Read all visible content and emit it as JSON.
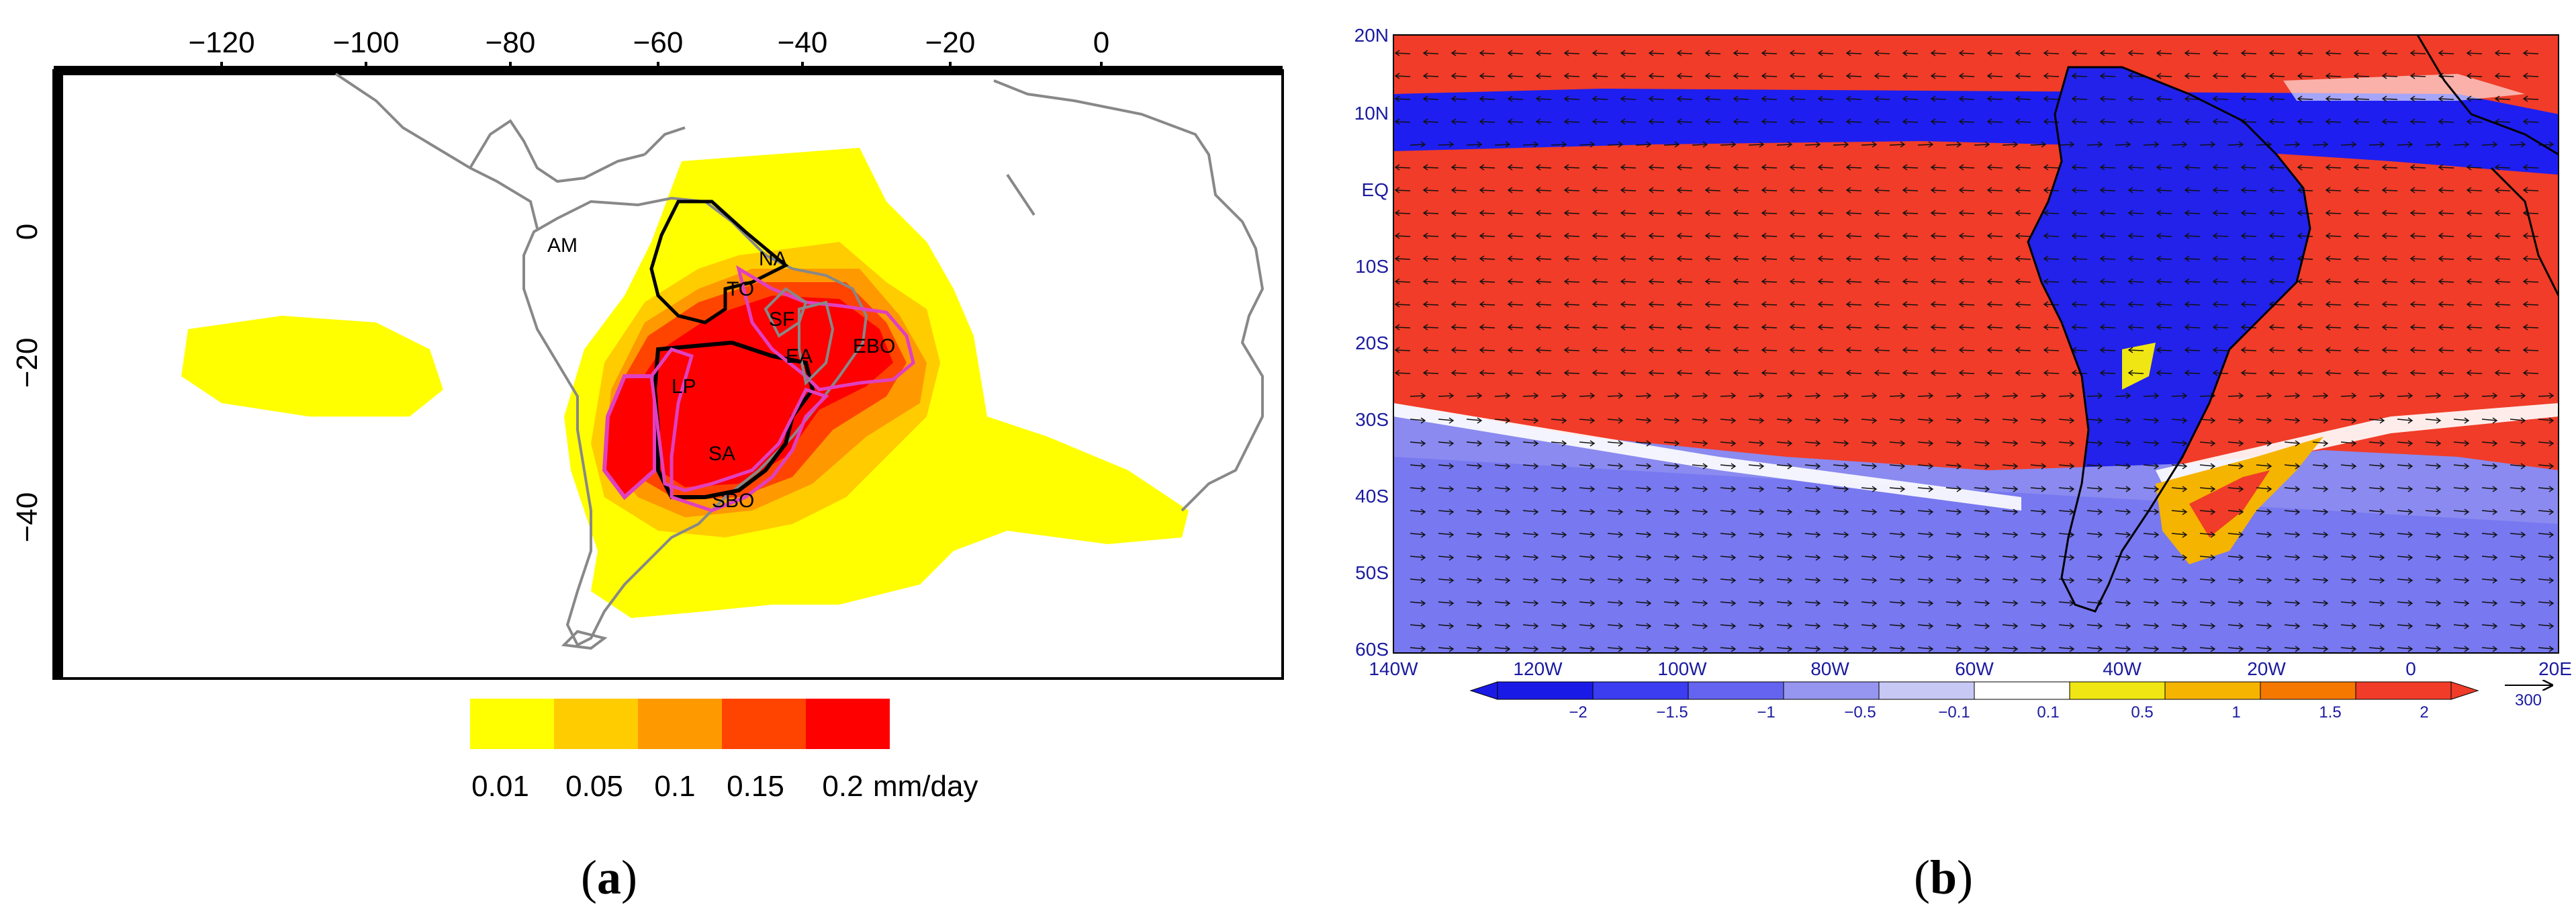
{
  "panel_a": {
    "label": "a",
    "x_ticks": [
      "−120",
      "−100",
      "−80",
      "−60",
      "−40",
      "−20",
      "0"
    ],
    "y_ticks": [
      "0",
      "−20",
      "−40"
    ],
    "regions": [
      "AM",
      "NA",
      "TO",
      "SF",
      "EA",
      "EBO",
      "LP",
      "SA",
      "SBO"
    ],
    "legend": {
      "values": [
        "0.01",
        "0.05",
        "0.1",
        "0.15",
        "0.2"
      ],
      "unit": "mm/day",
      "colors": [
        "#ffff00",
        "#ffcc00",
        "#ff9900",
        "#ff4400",
        "#ff0000"
      ]
    }
  },
  "panel_b": {
    "label": "b",
    "lat_ticks": [
      "20N",
      "10N",
      "EQ",
      "10S",
      "20S",
      "30S",
      "40S",
      "50S",
      "60S"
    ],
    "lon_ticks": [
      "140W",
      "120W",
      "100W",
      "80W",
      "60W",
      "40W",
      "20W",
      "0",
      "20E"
    ],
    "colorbar": {
      "labels": [
        "−2",
        "−1.5",
        "−1",
        "−0.5",
        "−0.1",
        "0.1",
        "0.5",
        "1",
        "1.5",
        "2"
      ],
      "vector_ref": "300",
      "colors": [
        "#1a1ae6",
        "#3c3cf0",
        "#6464f0",
        "#9696f0",
        "#c8c8f5",
        "#ffffff",
        "#f0e614",
        "#f5b400",
        "#f57800",
        "#f03c28"
      ]
    }
  },
  "colors": {
    "ocean_red": "#f03c28",
    "land_blue": "#1e1ef0",
    "coast_gray": "#888888"
  }
}
